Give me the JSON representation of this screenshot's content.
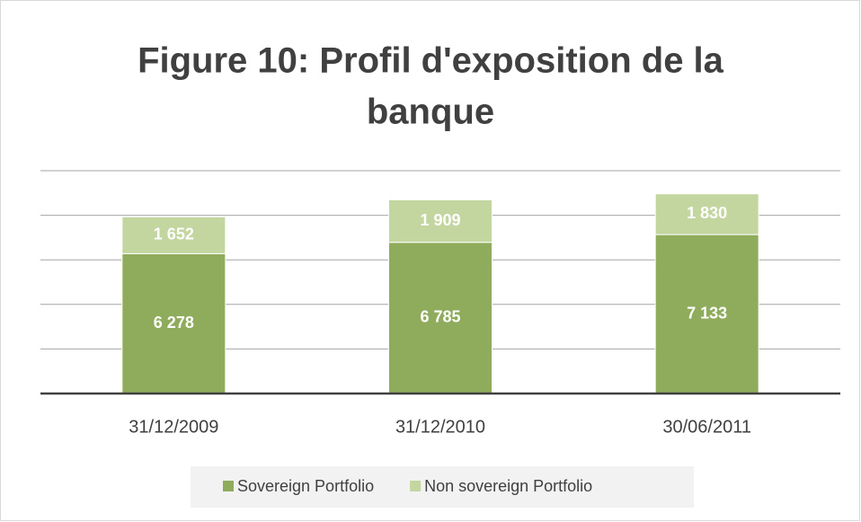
{
  "chart_data": {
    "type": "stacked_bar",
    "title": [
      "Figure 10: Profil d'exposition de la",
      "banque"
    ],
    "categories": [
      "31/12/2009",
      "31/12/2010",
      "30/06/2011"
    ],
    "series": [
      {
        "name": "Sovereign Portfolio",
        "color": "#8fac5c",
        "values": [
          6278,
          6785,
          7133
        ],
        "value_labels": [
          "6 278",
          "6 785",
          "7 133"
        ]
      },
      {
        "name": "Non sovereign Portfolio",
        "color": "#c3d6a0",
        "values": [
          1652,
          1909,
          1830
        ],
        "value_labels": [
          "1 652",
          "1 909",
          "1 830"
        ]
      }
    ],
    "ylim": [
      0,
      10000
    ],
    "yticks": [
      0,
      2000,
      4000,
      6000,
      8000,
      10000
    ],
    "grid": true
  }
}
